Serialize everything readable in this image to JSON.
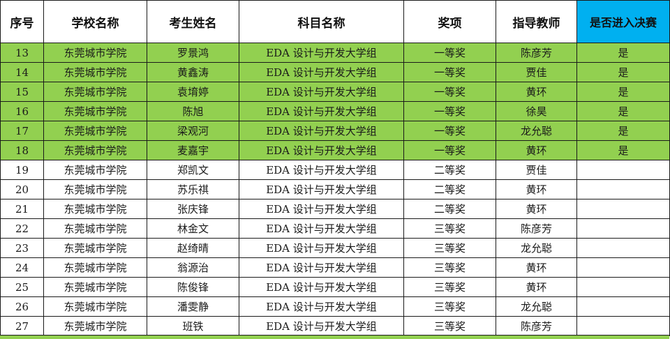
{
  "headers": [
    "序号",
    "学校名称",
    "考生姓名",
    "科目名称",
    "奖项",
    "指导教师",
    "是否进入决赛"
  ],
  "rows": [
    {
      "no": "13",
      "school": "东莞城市学院",
      "name": "罗景鸿",
      "subject": "EDA 设计与开发大学组",
      "award": "一等奖",
      "teacher": "陈彦芳",
      "final": "是"
    },
    {
      "no": "14",
      "school": "东莞城市学院",
      "name": "黄鑫涛",
      "subject": "EDA 设计与开发大学组",
      "award": "一等奖",
      "teacher": "贾佳",
      "final": "是"
    },
    {
      "no": "15",
      "school": "东莞城市学院",
      "name": "袁堉婷",
      "subject": "EDA 设计与开发大学组",
      "award": "一等奖",
      "teacher": "黄环",
      "final": "是"
    },
    {
      "no": "16",
      "school": "东莞城市学院",
      "name": "陈旭",
      "subject": "EDA 设计与开发大学组",
      "award": "一等奖",
      "teacher": "徐昊",
      "final": "是"
    },
    {
      "no": "17",
      "school": "东莞城市学院",
      "name": "梁观河",
      "subject": "EDA 设计与开发大学组",
      "award": "一等奖",
      "teacher": "龙允聪",
      "final": "是"
    },
    {
      "no": "18",
      "school": "东莞城市学院",
      "name": "麦嘉宇",
      "subject": "EDA 设计与开发大学组",
      "award": "一等奖",
      "teacher": "黄环",
      "final": "是"
    },
    {
      "no": "19",
      "school": "东莞城市学院",
      "name": "郑凯文",
      "subject": "EDA 设计与开发大学组",
      "award": "二等奖",
      "teacher": "贾佳",
      "final": ""
    },
    {
      "no": "20",
      "school": "东莞城市学院",
      "name": "苏乐祺",
      "subject": "EDA 设计与开发大学组",
      "award": "二等奖",
      "teacher": "黄环",
      "final": ""
    },
    {
      "no": "21",
      "school": "东莞城市学院",
      "name": "张庆锋",
      "subject": "EDA 设计与开发大学组",
      "award": "二等奖",
      "teacher": "黄环",
      "final": ""
    },
    {
      "no": "22",
      "school": "东莞城市学院",
      "name": "林金文",
      "subject": "EDA 设计与开发大学组",
      "award": "三等奖",
      "teacher": "陈彦芳",
      "final": ""
    },
    {
      "no": "23",
      "school": "东莞城市学院",
      "name": "赵绮晴",
      "subject": "EDA 设计与开发大学组",
      "award": "三等奖",
      "teacher": "龙允聪",
      "final": ""
    },
    {
      "no": "24",
      "school": "东莞城市学院",
      "name": "翁源治",
      "subject": "EDA 设计与开发大学组",
      "award": "三等奖",
      "teacher": "黄环",
      "final": ""
    },
    {
      "no": "25",
      "school": "东莞城市学院",
      "name": "陈俊锋",
      "subject": "EDA 设计与开发大学组",
      "award": "三等奖",
      "teacher": "黄环",
      "final": ""
    },
    {
      "no": "26",
      "school": "东莞城市学院",
      "name": "潘雯静",
      "subject": "EDA 设计与开发大学组",
      "award": "三等奖",
      "teacher": "龙允聪",
      "final": ""
    },
    {
      "no": "27",
      "school": "东莞城市学院",
      "name": "班铁",
      "subject": "EDA 设计与开发大学组",
      "award": "三等奖",
      "teacher": "陈彦芳",
      "final": ""
    }
  ],
  "colors": {
    "finalist_row": "#92d050",
    "final_header": "#00b0f0",
    "border": "#1a1a1a"
  }
}
